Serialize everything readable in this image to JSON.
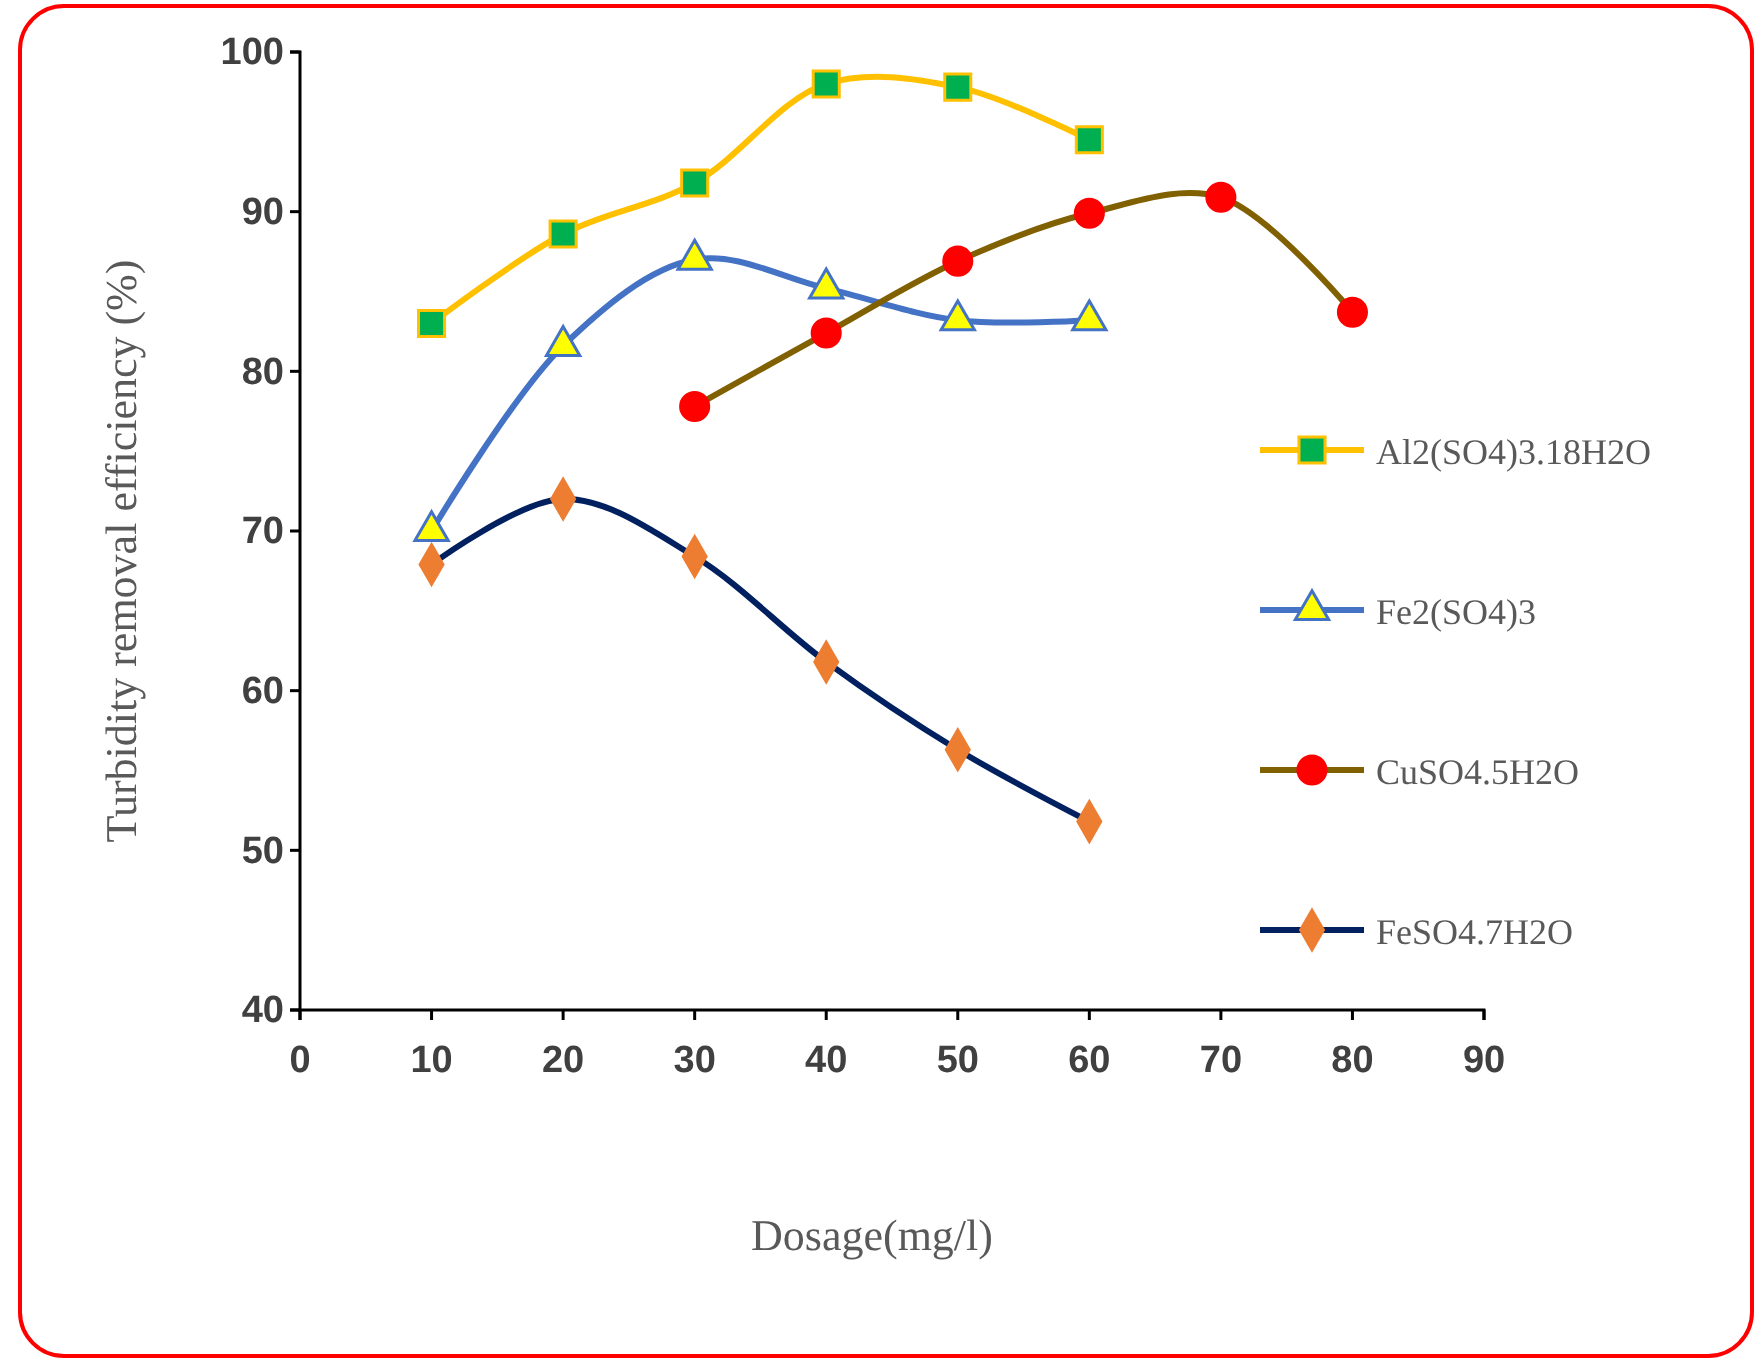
{
  "chart_data": {
    "type": "line",
    "xlabel": "Dosage(mg/l)",
    "ylabel": "Turbidity removal efficiency (%)",
    "xlim": [
      0,
      90
    ],
    "xticks": [
      0,
      10,
      20,
      30,
      40,
      50,
      60,
      70,
      80,
      90
    ],
    "ylim": [
      40,
      100
    ],
    "yticks": [
      40,
      50,
      60,
      70,
      80,
      90,
      100
    ],
    "grid": false,
    "legend": "right",
    "series": [
      {
        "name": "Al2(SO4)3.18H2O",
        "color": "#ffc000",
        "marker": "square",
        "colors": [
          "#00b050",
          "#00b050",
          "#00b050",
          "#00b050",
          "#00b050",
          "#00b050"
        ],
        "x": [
          10,
          20,
          30,
          40,
          50,
          60
        ],
        "values": [
          83.0,
          88.6,
          91.8,
          98.0,
          97.8,
          94.5
        ]
      },
      {
        "name": "Fe2(SO4)3",
        "color": "#4472c4",
        "marker": "triangle",
        "colors": [
          "#ffff00",
          "#ffff00",
          "#ffff00",
          "#ffff00",
          "#ffff00",
          "#ffff00"
        ],
        "x": [
          10,
          20,
          30,
          40,
          50,
          60
        ],
        "values": [
          70.0,
          81.6,
          87.0,
          85.2,
          83.2,
          83.2
        ]
      },
      {
        "name": "CuSO4.5H2O",
        "color": "#806000",
        "marker": "circle",
        "colors": [
          "#ff0000",
          "#ff0000",
          "#ff0000",
          "#ff0000",
          "#ff0000",
          "#ff0000"
        ],
        "x": [
          30,
          40,
          50,
          60,
          70,
          80
        ],
        "values": [
          77.8,
          82.4,
          86.9,
          89.9,
          90.9,
          83.7
        ]
      },
      {
        "name": "FeSO4.7H2O",
        "color": "#002060",
        "marker": "diamond",
        "colors": [
          "#ed7d31",
          "#ed7d31",
          "#ed7d31",
          "#ed7d31",
          "#ed7d31",
          "#ed7d31"
        ],
        "x": [
          10,
          20,
          30,
          40,
          50,
          60
        ],
        "values": [
          67.9,
          72.0,
          68.4,
          61.8,
          56.3,
          51.8
        ]
      }
    ]
  }
}
